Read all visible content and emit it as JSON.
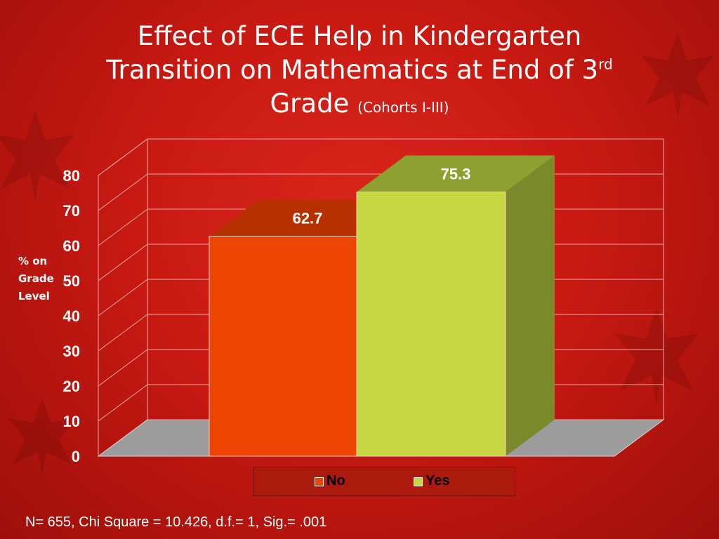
{
  "slide": {
    "title_line1": "Effect of ECE Help in Kindergarten",
    "title_line2a": "Transition on Mathematics at End of 3",
    "title_line2_sup": "rd",
    "title_line3": "Grade ",
    "title_subtitle": "(Cohorts I-III)",
    "footnote": "N= 655, Chi Square = 10.426, d.f.= 1, Sig.= .001"
  },
  "colors": {
    "background": "#c81912",
    "no_front": "#ee4502",
    "no_top": "#b83000",
    "yes_front": "#c7d743",
    "yes_top": "#8ea030",
    "yes_side": "#7a8a2a",
    "floor": "#9c9c9c"
  },
  "chart_data": {
    "type": "bar",
    "title": "Effect of ECE Help in Kindergarten Transition on Mathematics at End of 3rd Grade (Cohorts I-III)",
    "categories": [
      "No",
      "Yes"
    ],
    "values": [
      62.7,
      75.3
    ],
    "data_labels": [
      "62.7",
      "75.3"
    ],
    "ylabel": "% on Grade Level",
    "xlabel": "",
    "ylim": [
      0,
      80
    ],
    "yticks": [
      "0",
      "10",
      "20",
      "30",
      "40",
      "50",
      "60",
      "70",
      "80"
    ],
    "grid": true,
    "legend": {
      "position": "bottom",
      "entries": [
        "No",
        "Yes"
      ]
    }
  },
  "legend": {
    "no_label": "No",
    "yes_label": "Yes"
  }
}
